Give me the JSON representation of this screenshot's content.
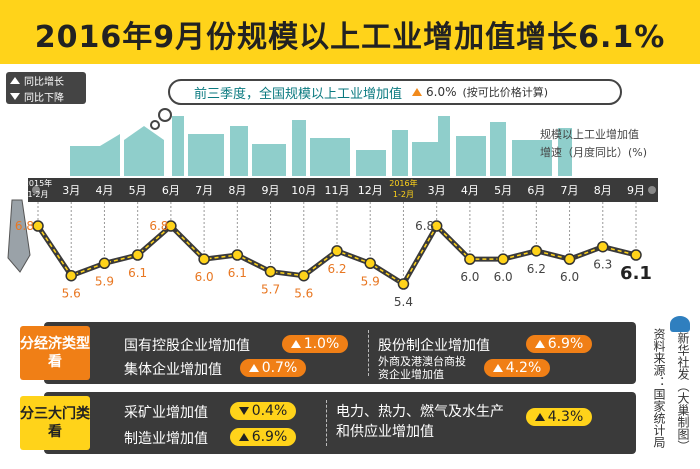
{
  "title": "2016年9月份规模以上工业增加值增长6.1%",
  "legend": {
    "up_label": "同比增长",
    "down_label": "同比下降"
  },
  "headline": {
    "text": "前三季度，全国规模以上工业增加值",
    "value": "6.0%",
    "note": "(按可比价格计算)"
  },
  "chart_note": {
    "line1": "规模以上工业增加值",
    "line2": "增速（月度同比）(%)"
  },
  "chart_data": {
    "type": "line",
    "categories": [
      "2015年 1-2月",
      "3月",
      "4月",
      "5月",
      "6月",
      "7月",
      "8月",
      "9月",
      "10月",
      "11月",
      "12月",
      "2016年 1-2月",
      "3月",
      "4月",
      "5月",
      "6月",
      "7月",
      "8月",
      "9月"
    ],
    "series": [
      {
        "values": [
          6.8,
          5.6,
          5.9,
          6.1,
          6.8,
          6.0,
          6.1,
          5.7,
          5.6,
          6.2,
          5.9,
          5.4,
          6.8,
          6.0,
          6.0,
          6.2,
          6.0,
          6.3,
          6.1
        ]
      }
    ],
    "value_labels": [
      "6.8",
      "5.6",
      "5.9",
      "6.1",
      "6.8",
      "6.0",
      "6.1",
      "5.7",
      "5.6",
      "6.2",
      "5.9",
      "5.4",
      "6.8",
      "6.0",
      "6.0",
      "6.2",
      "6.0",
      "6.3",
      "6.1"
    ],
    "colors": {
      "line": "#3a3a3a",
      "marker": "#ffd31a",
      "label_2015": "#e87722",
      "label_2016": "#444444",
      "axis_bar": "#3a3a3a"
    }
  },
  "ownership": {
    "tag": "分经济类型看",
    "items": [
      {
        "label": "国有控股企业增加值",
        "value": "1.0%",
        "dir": "up"
      },
      {
        "label": "集体企业增加值",
        "value": "0.7%",
        "dir": "up"
      },
      {
        "label": "股份制企业增加值",
        "value": "6.9%",
        "dir": "up"
      },
      {
        "label": "外商及港澳台商投资企业增加值",
        "value": "4.2%",
        "dir": "up"
      }
    ]
  },
  "sectors": {
    "tag": "分三大门类看",
    "items": [
      {
        "label": "采矿业增加值",
        "value": "0.4%",
        "dir": "down"
      },
      {
        "label": "制造业增加值",
        "value": "6.9%",
        "dir": "up"
      },
      {
        "label": "电力、热力、燃气及水生产和供应业增加值",
        "value": "4.3%",
        "dir": "up"
      }
    ]
  },
  "source": "资料来源：国家统计局",
  "credit": "新华社发（大巢制图）",
  "colors": {
    "accent": "#ffd31a",
    "orange": "#f07f16",
    "teal": "#7cc6c3",
    "dark": "#3a3a3a"
  }
}
